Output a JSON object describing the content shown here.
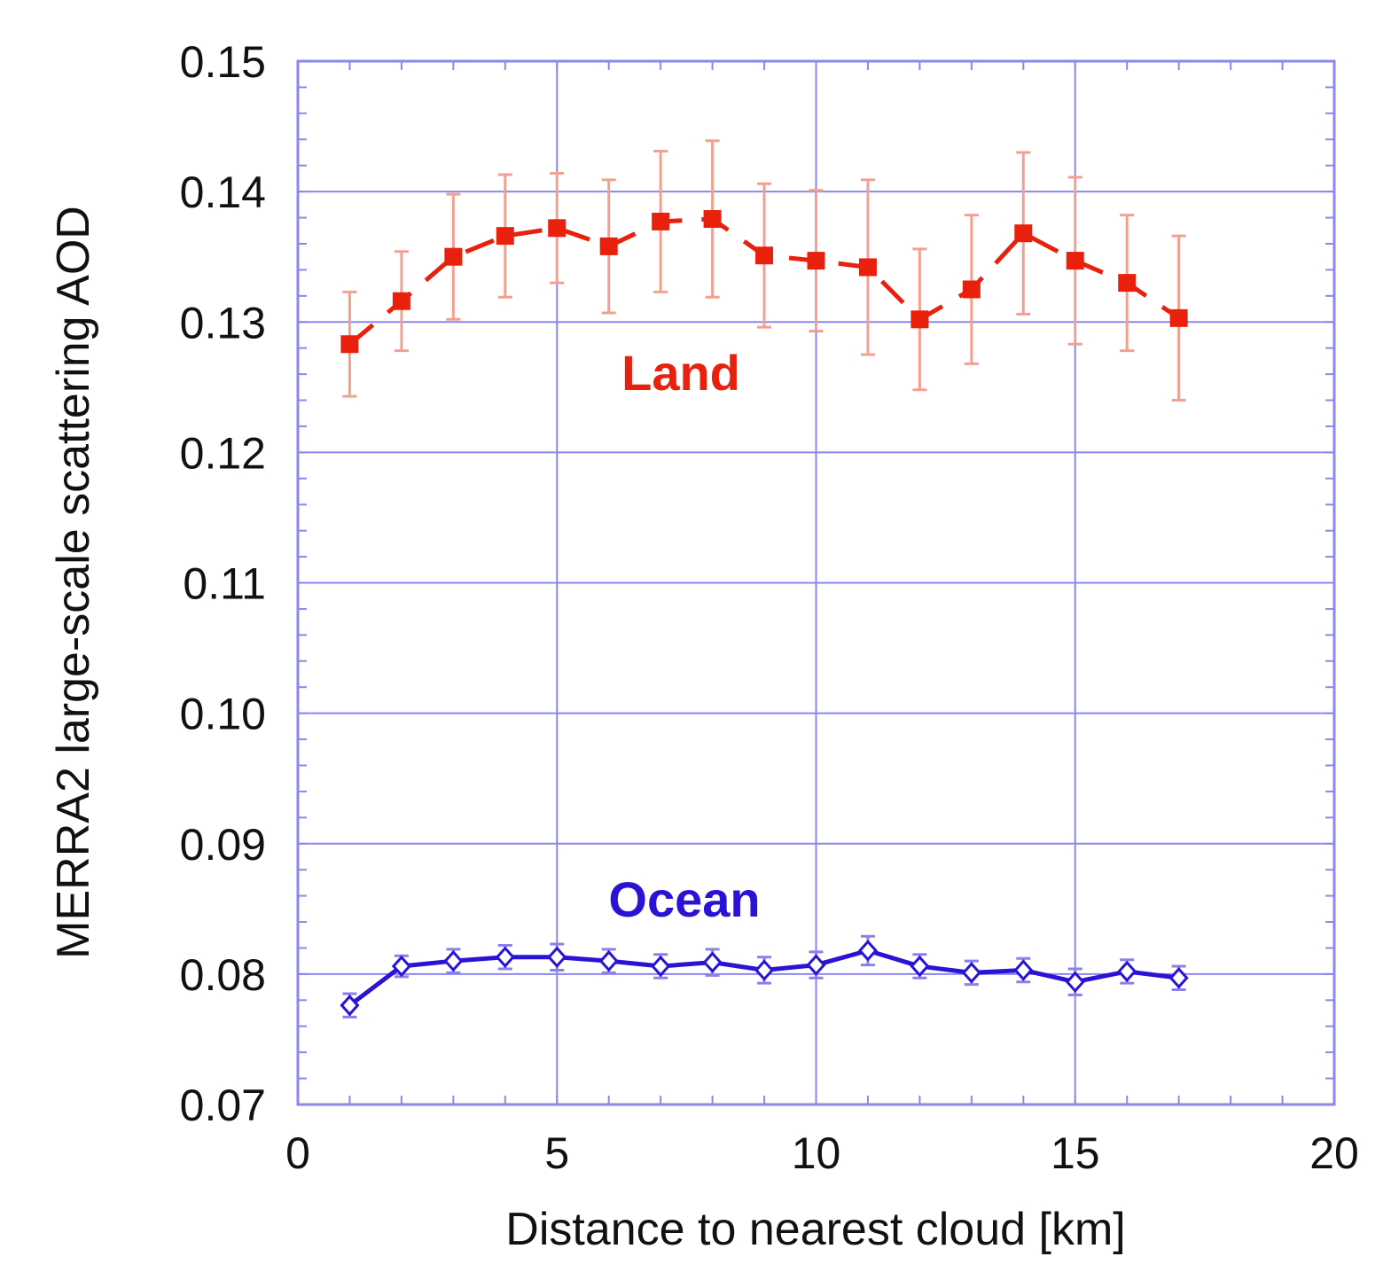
{
  "chart_data": {
    "type": "line",
    "title": "",
    "xlabel": "Distance to nearest cloud [km]",
    "ylabel": "MERRA2 large-scale scattering AOD",
    "xlim": [
      0,
      20
    ],
    "ylim": [
      0.07,
      0.15
    ],
    "x_ticks": [
      "0",
      "5",
      "10",
      "15",
      "20"
    ],
    "y_ticks": [
      "0.07",
      "0.08",
      "0.09",
      "0.10",
      "0.11",
      "0.12",
      "0.13",
      "0.14",
      "0.15"
    ],
    "grid": true,
    "x": [
      1,
      2,
      3,
      4,
      5,
      6,
      7,
      8,
      9,
      10,
      11,
      12,
      13,
      14,
      15,
      16,
      17
    ],
    "series": [
      {
        "name": "Land",
        "color": "#e8200c",
        "line_style": "dashed",
        "marker": "square",
        "values": [
          0.1283,
          0.1316,
          0.135,
          0.1366,
          0.1372,
          0.1358,
          0.1377,
          0.1379,
          0.1351,
          0.1347,
          0.1342,
          0.1302,
          0.1325,
          0.1368,
          0.1347,
          0.133,
          0.1303
        ],
        "error": [
          0.004,
          0.0038,
          0.0048,
          0.0047,
          0.0042,
          0.0051,
          0.0054,
          0.006,
          0.0055,
          0.0054,
          0.0067,
          0.0054,
          0.0057,
          0.0062,
          0.0064,
          0.0052,
          0.0063
        ]
      },
      {
        "name": "Ocean",
        "color": "#2a12d6",
        "line_style": "solid",
        "marker": "diamond",
        "values": [
          0.0776,
          0.0806,
          0.081,
          0.0813,
          0.0813,
          0.081,
          0.0806,
          0.0809,
          0.0803,
          0.0807,
          0.0818,
          0.0806,
          0.0801,
          0.0803,
          0.0794,
          0.0802,
          0.0797
        ],
        "error": [
          0.0009,
          0.0008,
          0.0009,
          0.0009,
          0.001,
          0.0009,
          0.0009,
          0.001,
          0.001,
          0.001,
          0.0011,
          0.0009,
          0.0009,
          0.0009,
          0.001,
          0.0009,
          0.0009
        ]
      }
    ],
    "grid_color": "#8a87f0"
  }
}
